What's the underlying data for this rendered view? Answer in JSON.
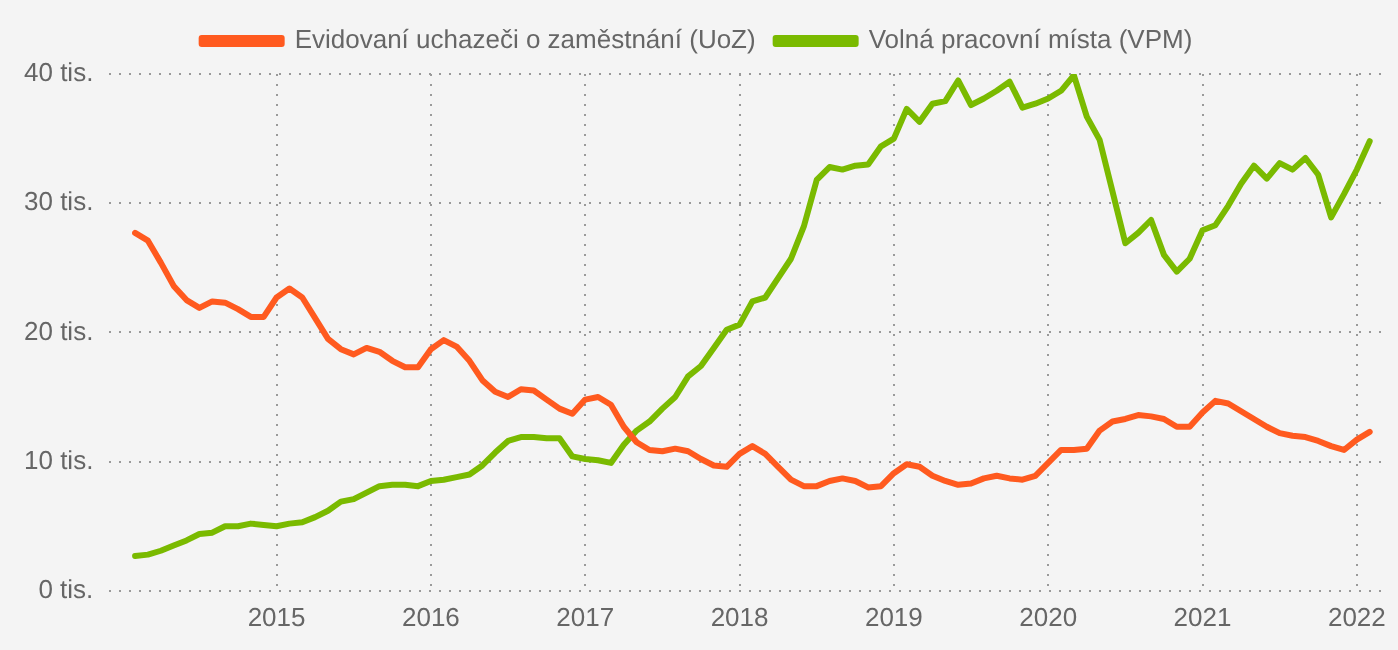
{
  "chart_data": {
    "type": "line",
    "x": [
      "2014-02",
      "2014-03",
      "2014-04",
      "2014-05",
      "2014-06",
      "2014-07",
      "2014-08",
      "2014-09",
      "2014-10",
      "2014-11",
      "2014-12",
      "2015-01",
      "2015-02",
      "2015-03",
      "2015-04",
      "2015-05",
      "2015-06",
      "2015-07",
      "2015-08",
      "2015-09",
      "2015-10",
      "2015-11",
      "2015-12",
      "2016-01",
      "2016-02",
      "2016-03",
      "2016-04",
      "2016-05",
      "2016-06",
      "2016-07",
      "2016-08",
      "2016-09",
      "2016-10",
      "2016-11",
      "2016-12",
      "2017-01",
      "2017-02",
      "2017-03",
      "2017-04",
      "2017-05",
      "2017-06",
      "2017-07",
      "2017-08",
      "2017-09",
      "2017-10",
      "2017-11",
      "2017-12",
      "2018-01",
      "2018-02",
      "2018-03",
      "2018-04",
      "2018-05",
      "2018-06",
      "2018-07",
      "2018-08",
      "2018-09",
      "2018-10",
      "2018-11",
      "2018-12",
      "2019-01",
      "2019-02",
      "2019-03",
      "2019-04",
      "2019-05",
      "2019-06",
      "2019-07",
      "2019-08",
      "2019-09",
      "2019-10",
      "2019-11",
      "2019-12",
      "2020-01",
      "2020-02",
      "2020-03",
      "2020-04",
      "2020-05",
      "2020-06",
      "2020-07",
      "2020-08",
      "2020-09",
      "2020-10",
      "2020-11",
      "2020-12",
      "2021-01",
      "2021-02",
      "2021-03",
      "2021-04",
      "2021-05",
      "2021-06",
      "2021-07",
      "2021-08",
      "2021-09",
      "2021-10",
      "2021-11",
      "2021-12",
      "2022-01",
      "2022-02"
    ],
    "series": [
      {
        "name": "Evidovaní uchazeči o zaměstnání (UoZ)",
        "color": "#ff5a1f",
        "values": [
          27.7,
          27.1,
          25.4,
          23.6,
          22.5,
          21.9,
          22.4,
          22.3,
          21.8,
          21.2,
          21.2,
          22.7,
          23.4,
          22.7,
          21.1,
          19.5,
          18.7,
          18.3,
          18.8,
          18.5,
          17.8,
          17.3,
          17.3,
          18.7,
          19.4,
          18.9,
          17.8,
          16.3,
          15.4,
          15.0,
          15.6,
          15.5,
          14.8,
          14.1,
          13.7,
          14.8,
          15.0,
          14.4,
          12.7,
          11.5,
          10.9,
          10.8,
          11.0,
          10.8,
          10.2,
          9.7,
          9.6,
          10.6,
          11.2,
          10.6,
          9.6,
          8.6,
          8.1,
          8.1,
          8.5,
          8.7,
          8.5,
          8.0,
          8.1,
          9.1,
          9.8,
          9.6,
          8.9,
          8.5,
          8.2,
          8.3,
          8.7,
          8.9,
          8.7,
          8.6,
          8.9,
          9.9,
          10.9,
          10.9,
          11.0,
          12.4,
          13.1,
          13.3,
          13.6,
          13.5,
          13.3,
          12.7,
          12.7,
          13.8,
          14.7,
          14.5,
          13.9,
          13.3,
          12.7,
          12.2,
          12.0,
          11.9,
          11.6,
          11.2,
          10.9,
          11.7,
          12.3
        ]
      },
      {
        "name": "Volná pracovní místa (VPM)",
        "color": "#7aba00",
        "values": [
          2.7,
          2.8,
          3.1,
          3.5,
          3.9,
          4.4,
          4.5,
          5.0,
          5.0,
          5.2,
          5.1,
          5.0,
          5.2,
          5.3,
          5.7,
          6.2,
          6.9,
          7.1,
          7.6,
          8.1,
          8.2,
          8.2,
          8.1,
          8.5,
          8.6,
          8.8,
          9.0,
          9.7,
          10.7,
          11.6,
          11.9,
          11.9,
          11.8,
          11.8,
          10.4,
          10.2,
          10.1,
          9.9,
          11.3,
          12.4,
          13.1,
          14.1,
          15.0,
          16.6,
          17.4,
          18.8,
          20.2,
          20.6,
          22.4,
          22.7,
          24.2,
          25.7,
          28.2,
          31.8,
          32.8,
          32.6,
          32.9,
          33.0,
          34.4,
          35.0,
          37.3,
          36.3,
          37.7,
          37.9,
          39.5,
          37.6,
          38.1,
          38.7,
          39.4,
          37.4,
          37.7,
          38.1,
          38.7,
          39.9,
          36.7,
          34.9,
          30.9,
          26.9,
          27.7,
          28.7,
          26.0,
          24.7,
          25.7,
          27.9,
          28.3,
          29.8,
          31.5,
          32.9,
          31.9,
          33.1,
          32.6,
          33.5,
          32.2,
          28.9,
          30.7,
          32.6,
          34.8
        ]
      }
    ],
    "xlim": [
      "2013-12",
      "2022-03"
    ],
    "xticks": [
      "2015",
      "2016",
      "2017",
      "2018",
      "2019",
      "2020",
      "2021",
      "2022"
    ],
    "ylim": [
      0,
      40
    ],
    "yticks": [
      {
        "value": 0,
        "label": "0 tis."
      },
      {
        "value": 10,
        "label": "10 tis."
      },
      {
        "value": 20,
        "label": "20 tis."
      },
      {
        "value": 30,
        "label": "30 tis."
      },
      {
        "value": 40,
        "label": "40 tis."
      }
    ],
    "grid": true,
    "legend": "top",
    "marker": "none",
    "line_style": "solid"
  }
}
